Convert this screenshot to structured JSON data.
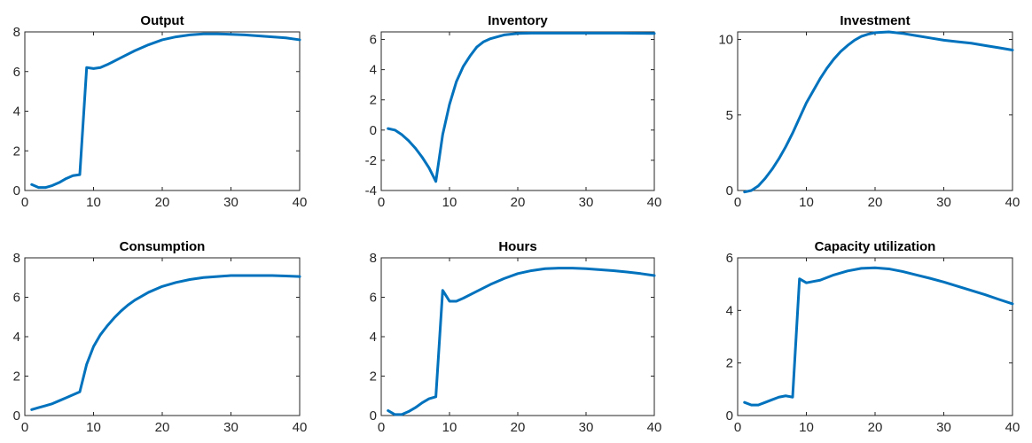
{
  "colors": {
    "line": "#0072BD",
    "axis": "#262626",
    "background": "#ffffff"
  },
  "chart_data": [
    {
      "type": "line",
      "title": "Output",
      "xlim": [
        0,
        40
      ],
      "ylim": [
        0,
        8
      ],
      "xticks": [
        0,
        10,
        20,
        30,
        40
      ],
      "yticks": [
        0,
        2,
        4,
        6,
        8
      ],
      "xtick_labels": [
        "0",
        "10",
        "20",
        "30",
        "40"
      ],
      "ytick_labels": [
        "0",
        "2",
        "4",
        "6",
        "8"
      ],
      "grid": false,
      "series": [
        {
          "x": [
            1,
            2,
            3,
            4,
            5,
            6,
            7,
            8,
            9,
            10,
            11,
            12,
            14,
            16,
            18,
            20,
            22,
            24,
            26,
            28,
            30,
            32,
            34,
            36,
            38,
            40
          ],
          "y": [
            0.3,
            0.15,
            0.15,
            0.25,
            0.4,
            0.6,
            0.75,
            0.8,
            6.2,
            6.15,
            6.2,
            6.35,
            6.7,
            7.05,
            7.35,
            7.6,
            7.75,
            7.85,
            7.9,
            7.9,
            7.88,
            7.85,
            7.8,
            7.75,
            7.7,
            7.6
          ]
        }
      ]
    },
    {
      "type": "line",
      "title": "Inventory",
      "xlim": [
        0,
        40
      ],
      "ylim": [
        -4,
        6.5
      ],
      "xticks": [
        0,
        10,
        20,
        30,
        40
      ],
      "yticks": [
        -4,
        -2,
        0,
        2,
        4,
        6
      ],
      "xtick_labels": [
        "0",
        "10",
        "20",
        "30",
        "40"
      ],
      "ytick_labels": [
        "-4",
        "-2",
        "0",
        "2",
        "4",
        "6"
      ],
      "grid": false,
      "series": [
        {
          "x": [
            1,
            2,
            3,
            4,
            5,
            6,
            7,
            8,
            9,
            10,
            11,
            12,
            13,
            14,
            15,
            16,
            18,
            20,
            22,
            25,
            30,
            35,
            40
          ],
          "y": [
            0.1,
            0.0,
            -0.3,
            -0.7,
            -1.2,
            -1.8,
            -2.5,
            -3.4,
            -0.3,
            1.7,
            3.2,
            4.2,
            4.9,
            5.5,
            5.85,
            6.05,
            6.3,
            6.4,
            6.42,
            6.42,
            6.42,
            6.42,
            6.4
          ]
        }
      ]
    },
    {
      "type": "line",
      "title": "Investment",
      "xlim": [
        0,
        40
      ],
      "ylim": [
        0,
        10.5
      ],
      "xticks": [
        0,
        10,
        20,
        30,
        40
      ],
      "yticks": [
        0,
        5,
        10
      ],
      "xtick_labels": [
        "0",
        "10",
        "20",
        "30",
        "40"
      ],
      "ytick_labels": [
        "0",
        "5",
        "10"
      ],
      "grid": false,
      "series": [
        {
          "x": [
            1,
            2,
            3,
            4,
            5,
            6,
            7,
            8,
            9,
            10,
            11,
            12,
            13,
            14,
            15,
            16,
            17,
            18,
            19,
            20,
            22,
            24,
            26,
            28,
            30,
            32,
            34,
            36,
            38,
            40
          ],
          "y": [
            -0.1,
            0.0,
            0.3,
            0.8,
            1.4,
            2.1,
            2.9,
            3.8,
            4.8,
            5.8,
            6.6,
            7.4,
            8.1,
            8.7,
            9.2,
            9.6,
            9.95,
            10.2,
            10.35,
            10.45,
            10.5,
            10.4,
            10.25,
            10.1,
            9.95,
            9.85,
            9.75,
            9.6,
            9.45,
            9.3
          ]
        }
      ]
    },
    {
      "type": "line",
      "title": "Consumption",
      "xlim": [
        0,
        40
      ],
      "ylim": [
        0,
        8
      ],
      "xticks": [
        0,
        10,
        20,
        30,
        40
      ],
      "yticks": [
        0,
        2,
        4,
        6,
        8
      ],
      "xtick_labels": [
        "0",
        "10",
        "20",
        "30",
        "40"
      ],
      "ytick_labels": [
        "0",
        "2",
        "4",
        "6",
        "8"
      ],
      "grid": false,
      "series": [
        {
          "x": [
            1,
            2,
            3,
            4,
            5,
            6,
            7,
            8,
            9,
            10,
            11,
            12,
            13,
            14,
            15,
            16,
            18,
            20,
            22,
            24,
            26,
            28,
            30,
            32,
            34,
            36,
            38,
            40
          ],
          "y": [
            0.3,
            0.4,
            0.5,
            0.6,
            0.75,
            0.9,
            1.05,
            1.2,
            2.6,
            3.5,
            4.1,
            4.55,
            4.95,
            5.3,
            5.6,
            5.85,
            6.25,
            6.55,
            6.75,
            6.9,
            7.0,
            7.05,
            7.1,
            7.1,
            7.1,
            7.1,
            7.08,
            7.05
          ]
        }
      ]
    },
    {
      "type": "line",
      "title": "Hours",
      "xlim": [
        0,
        40
      ],
      "ylim": [
        0,
        8
      ],
      "xticks": [
        0,
        10,
        20,
        30,
        40
      ],
      "yticks": [
        0,
        2,
        4,
        6,
        8
      ],
      "xtick_labels": [
        "0",
        "10",
        "20",
        "30",
        "40"
      ],
      "ytick_labels": [
        "0",
        "2",
        "4",
        "6",
        "8"
      ],
      "grid": false,
      "series": [
        {
          "x": [
            1,
            2,
            3,
            4,
            5,
            6,
            7,
            8,
            9,
            10,
            11,
            12,
            14,
            16,
            18,
            20,
            22,
            24,
            26,
            28,
            30,
            32,
            34,
            36,
            38,
            40
          ],
          "y": [
            0.25,
            0.05,
            0.05,
            0.2,
            0.4,
            0.65,
            0.85,
            0.95,
            6.35,
            5.8,
            5.8,
            5.95,
            6.3,
            6.65,
            6.95,
            7.2,
            7.35,
            7.45,
            7.48,
            7.48,
            7.45,
            7.4,
            7.35,
            7.28,
            7.2,
            7.1
          ]
        }
      ]
    },
    {
      "type": "line",
      "title": "Capacity utilization",
      "xlim": [
        0,
        40
      ],
      "ylim": [
        0,
        6
      ],
      "xticks": [
        0,
        10,
        20,
        30,
        40
      ],
      "yticks": [
        0,
        2,
        4,
        6
      ],
      "xtick_labels": [
        "0",
        "10",
        "20",
        "30",
        "40"
      ],
      "ytick_labels": [
        "0",
        "2",
        "4",
        "6"
      ],
      "grid": false,
      "series": [
        {
          "x": [
            1,
            2,
            3,
            4,
            5,
            6,
            7,
            8,
            9,
            10,
            11,
            12,
            14,
            16,
            18,
            20,
            22,
            24,
            26,
            28,
            30,
            32,
            34,
            36,
            38,
            40
          ],
          "y": [
            0.5,
            0.4,
            0.4,
            0.5,
            0.6,
            0.7,
            0.75,
            0.7,
            5.2,
            5.05,
            5.1,
            5.15,
            5.35,
            5.5,
            5.6,
            5.62,
            5.58,
            5.48,
            5.35,
            5.22,
            5.08,
            4.92,
            4.76,
            4.6,
            4.42,
            4.25
          ]
        }
      ]
    }
  ]
}
